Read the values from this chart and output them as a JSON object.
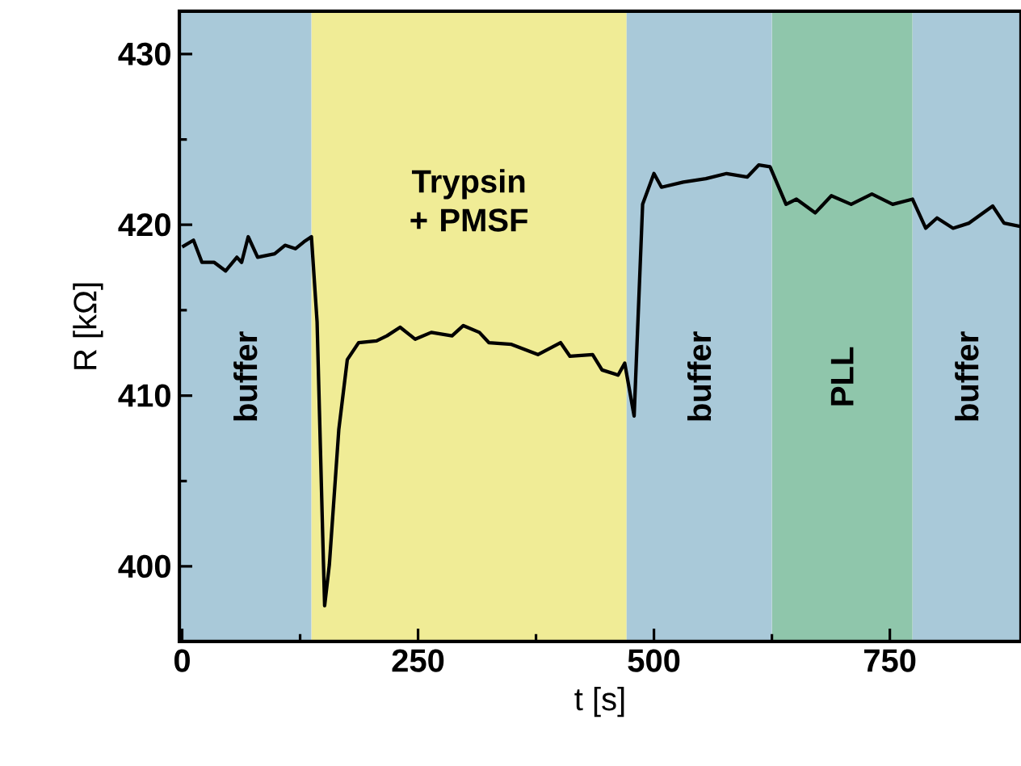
{
  "chart_data": {
    "type": "line",
    "xlabel": "t [s]",
    "ylabel": "R [kΩ]",
    "xlim": [
      -3,
      889
    ],
    "ylim": [
      395.6,
      432.5
    ],
    "xticks": [
      0,
      250,
      500,
      750
    ],
    "yticks": [
      400,
      410,
      420,
      430
    ],
    "bands": [
      {
        "axis": "x",
        "from": -3,
        "to": 137,
        "label": "buffer",
        "color": "#a9c9d9"
      },
      {
        "axis": "x",
        "from": 137,
        "to": 471,
        "label": "Trypsin + PMSF",
        "color": "#f0ec96"
      },
      {
        "axis": "x",
        "from": 471,
        "to": 625,
        "label": "buffer",
        "color": "#a9c9d9"
      },
      {
        "axis": "x",
        "from": 625,
        "to": 774,
        "label": "PLL",
        "color": "#8fc6ab"
      },
      {
        "axis": "x",
        "from": 774,
        "to": 889,
        "label": "buffer",
        "color": "#a9c9d9"
      }
    ],
    "series": [
      {
        "color": "#000000",
        "x": [
          0,
          12,
          21,
          34,
          46,
          58,
          63,
          70,
          80,
          98,
          109,
          120,
          129,
          137,
          143,
          149,
          151,
          156,
          166,
          175,
          187,
          206,
          217,
          231,
          247,
          264,
          286,
          298,
          315,
          325,
          349,
          377,
          401,
          411,
          435,
          445,
          462,
          469,
          479,
          488,
          500,
          508,
          531,
          555,
          577,
          599,
          611,
          623,
          640,
          651,
          671,
          688,
          709,
          731,
          753,
          774,
          788,
          800,
          817,
          834,
          859,
          871,
          889
        ],
        "values": [
          418.7,
          419.1,
          417.8,
          417.8,
          417.3,
          418.1,
          417.8,
          419.3,
          418.1,
          418.3,
          418.8,
          418.6,
          419.0,
          419.3,
          414.3,
          401.7,
          397.7,
          400.1,
          408.0,
          412.1,
          413.1,
          413.2,
          413.5,
          414.0,
          413.3,
          413.7,
          413.5,
          414.1,
          413.7,
          413.1,
          413.0,
          412.4,
          413.1,
          412.3,
          412.4,
          411.5,
          411.2,
          411.9,
          408.8,
          421.2,
          423.0,
          422.2,
          422.5,
          422.7,
          423.0,
          422.8,
          423.5,
          423.4,
          421.2,
          421.5,
          420.7,
          421.7,
          421.2,
          421.8,
          421.2,
          421.5,
          419.8,
          420.4,
          419.8,
          420.1,
          421.1,
          420.1,
          419.9
        ]
      }
    ]
  }
}
